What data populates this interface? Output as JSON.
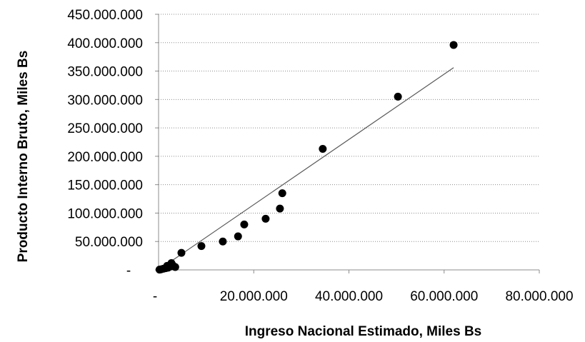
{
  "chart_data": {
    "type": "scatter",
    "xlabel": "Ingreso Nacional Estimado, Miles Bs",
    "ylabel": "Producto Interno Bruto, Miles Bs",
    "xlim": [
      0,
      80000000
    ],
    "ylim": [
      0,
      450000000
    ],
    "grid": "horizontal dotted",
    "legend": "none",
    "x_tick_labels": [
      "-",
      "20.000.000",
      "40.000.000",
      "60.000.000",
      "80.000.000"
    ],
    "y_tick_labels": [
      "-",
      "50.000.000",
      "100.000.000",
      "150.000.000",
      "200.000.000",
      "250.000.000",
      "300.000.000",
      "350.000.000",
      "400.000.000",
      "450.000.000"
    ],
    "series": [
      {
        "marker_color": "#000000",
        "points": [
          {
            "x": 200000,
            "y": 500000
          },
          {
            "x": 500000,
            "y": 1000000
          },
          {
            "x": 1000000,
            "y": 2000000
          },
          {
            "x": 1500000,
            "y": 3000000
          },
          {
            "x": 2000000,
            "y": 4000000
          },
          {
            "x": 2500000,
            "y": 6000000
          },
          {
            "x": 3000000,
            "y": 8000000
          },
          {
            "x": 3500000,
            "y": 5000000
          },
          {
            "x": 1800000,
            "y": 7000000
          },
          {
            "x": 2700000,
            "y": 12000000
          },
          {
            "x": 4800000,
            "y": 30000000
          },
          {
            "x": 9000000,
            "y": 42000000
          },
          {
            "x": 13500000,
            "y": 50000000
          },
          {
            "x": 16700000,
            "y": 59000000
          },
          {
            "x": 18000000,
            "y": 80000000
          },
          {
            "x": 22500000,
            "y": 90000000
          },
          {
            "x": 25500000,
            "y": 108000000
          },
          {
            "x": 26000000,
            "y": 135000000
          },
          {
            "x": 34500000,
            "y": 213000000
          },
          {
            "x": 50300000,
            "y": 305000000
          },
          {
            "x": 62000000,
            "y": 396000000
          }
        ]
      }
    ],
    "trendline": {
      "color": "#595959",
      "x": [
        0,
        62000000
      ],
      "y": [
        0,
        356000000
      ]
    }
  }
}
